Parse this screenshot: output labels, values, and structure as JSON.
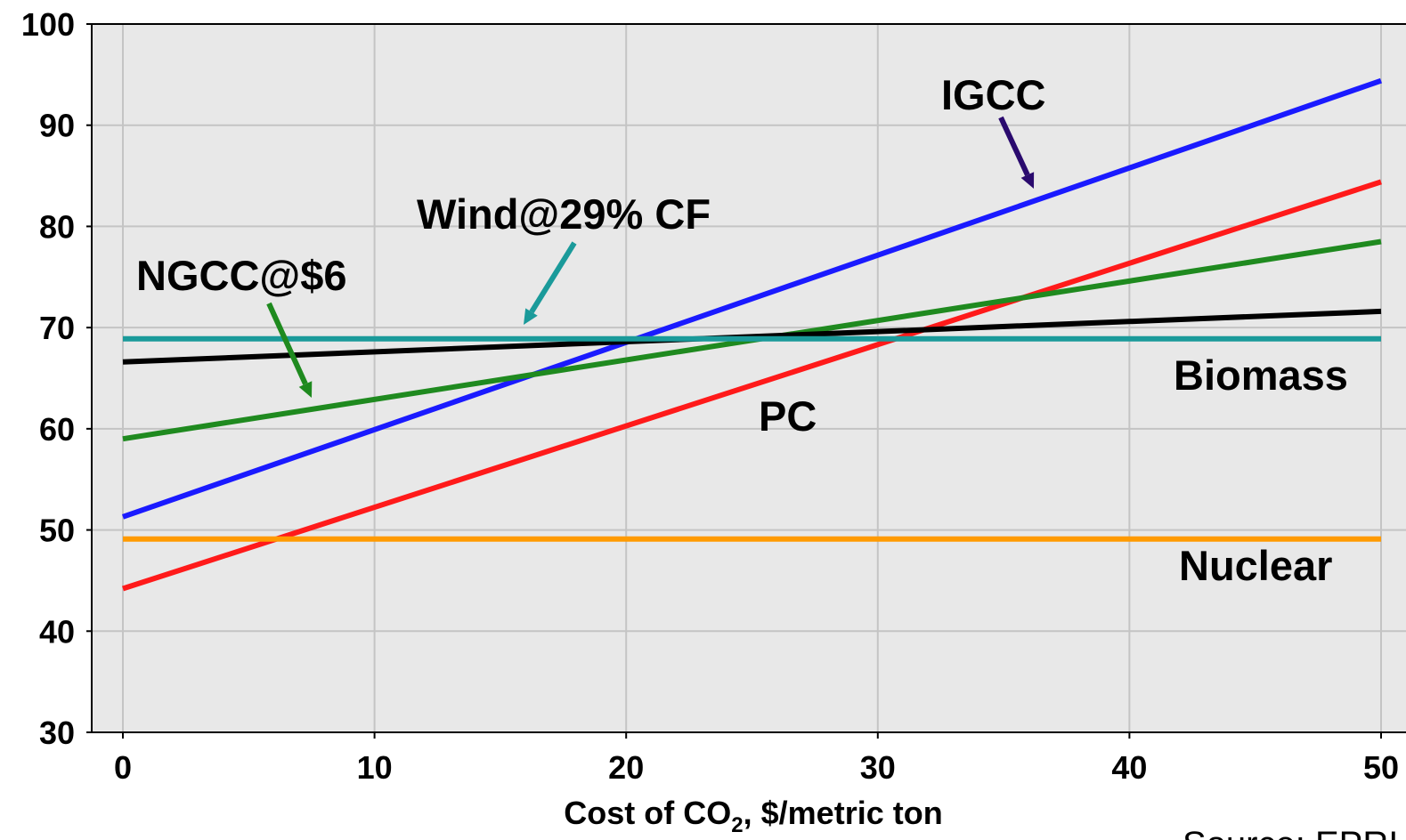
{
  "chart_data": {
    "type": "line",
    "title": "",
    "xlabel": "Cost of CO",
    "xlabel_sub": "2",
    "xlabel_rest": ", $/metric ton",
    "ylabel": "",
    "xlim": [
      0,
      50
    ],
    "ylim": [
      30,
      100
    ],
    "x_ticks": [
      "0",
      "10",
      "20",
      "30",
      "40",
      "50"
    ],
    "y_ticks": [
      "30",
      "40",
      "50",
      "60",
      "70",
      "80",
      "90",
      "100"
    ],
    "grid": true,
    "background": "#e8e8e8",
    "series": [
      {
        "name": "IGCC",
        "color": "#1a1aff",
        "x": [
          0,
          50
        ],
        "values": [
          51.3,
          94.4
        ]
      },
      {
        "name": "PC",
        "color": "#ff1a1a",
        "x": [
          0,
          50
        ],
        "values": [
          44.2,
          84.4
        ]
      },
      {
        "name": "NGCC@$6",
        "color": "#1f8a1f",
        "x": [
          0,
          50
        ],
        "values": [
          59.0,
          78.5
        ]
      },
      {
        "name": "Biomass",
        "color": "#000000",
        "x": [
          0,
          50
        ],
        "values": [
          66.6,
          71.6
        ]
      },
      {
        "name": "Wind@29% CF",
        "color": "#1a9a9a",
        "x": [
          0,
          50
        ],
        "values": [
          68.9,
          68.9
        ]
      },
      {
        "name": "Nuclear",
        "color": "#ff9a00",
        "x": [
          0,
          50
        ],
        "values": [
          49.1,
          49.1
        ]
      }
    ],
    "annotations": [
      {
        "text": "IGCC",
        "color": "#2a0a6e"
      },
      {
        "text": "Wind@29% CF",
        "color": "#1a9a9a"
      },
      {
        "text": "NGCC@$6",
        "color": "#1f8a1f"
      },
      {
        "text": "Biomass"
      },
      {
        "text": "PC"
      },
      {
        "text": "Nuclear"
      }
    ],
    "source_text": "Source: EPRI"
  }
}
